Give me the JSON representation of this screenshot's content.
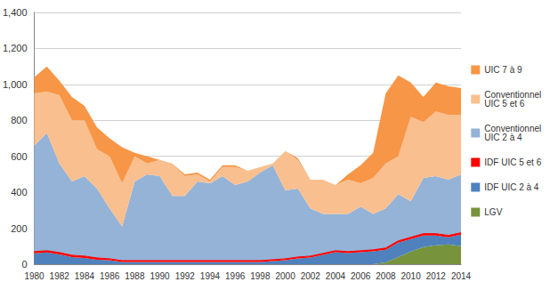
{
  "chart_data": {
    "type": "area",
    "stacked": true,
    "grid": true,
    "legend": "right",
    "categories": [
      "1980",
      null,
      "1982",
      null,
      "1984",
      null,
      "1986",
      null,
      "1988",
      null,
      "1990",
      null,
      "1992",
      null,
      "1994",
      null,
      "1996",
      null,
      "1998",
      null,
      "2000",
      null,
      "2002",
      null,
      "2004",
      null,
      "2006",
      null,
      "2008",
      null,
      "2010",
      null,
      "2012",
      null,
      "2014"
    ],
    "ylim": [
      0,
      1400
    ],
    "yticks": [
      0,
      200,
      400,
      600,
      800,
      1000,
      1200,
      1400
    ],
    "series": [
      {
        "name": "LGV",
        "color": "#77933c",
        "values": [
          0,
          0,
          0,
          0,
          0,
          0,
          0,
          0,
          0,
          0,
          0,
          0,
          0,
          0,
          0,
          0,
          0,
          0,
          0,
          0,
          0,
          0,
          0,
          0,
          0,
          0,
          0,
          0,
          10,
          40,
          70,
          95,
          105,
          110,
          100
        ]
      },
      {
        "name": "IDF UIC 2 à 4",
        "color": "#4f81bd",
        "values": [
          60,
          65,
          55,
          40,
          35,
          25,
          22,
          12,
          12,
          12,
          12,
          12,
          12,
          12,
          12,
          12,
          12,
          12,
          12,
          17,
          22,
          32,
          37,
          52,
          67,
          62,
          67,
          72,
          70,
          80,
          70,
          65,
          55,
          40,
          65
        ]
      },
      {
        "name": "IDF UIC 5 et 6",
        "color": "#ff0000",
        "values": [
          10,
          10,
          10,
          10,
          10,
          10,
          8,
          8,
          8,
          8,
          8,
          8,
          8,
          8,
          8,
          8,
          8,
          8,
          8,
          8,
          8,
          8,
          8,
          8,
          8,
          8,
          8,
          8,
          10,
          10,
          10,
          10,
          10,
          10,
          10
        ]
      },
      {
        "name": "Conventionnel UIC 2 à 4",
        "color": "#95b3d7",
        "values": [
          590,
          655,
          495,
          410,
          445,
          385,
          280,
          190,
          440,
          480,
          470,
          360,
          360,
          440,
          430,
          470,
          420,
          440,
          490,
          525,
          380,
          380,
          265,
          220,
          205,
          210,
          245,
          200,
          220,
          260,
          200,
          310,
          320,
          310,
          325
        ]
      },
      {
        "name": "Conventionnel UIC 5 et 6",
        "color": "#fabf8f",
        "values": [
          290,
          230,
          380,
          340,
          310,
          220,
          290,
          240,
          140,
          60,
          90,
          180,
          110,
          40,
          10,
          50,
          100,
          60,
          30,
          10,
          220,
          160,
          160,
          190,
          160,
          190,
          130,
          200,
          250,
          210,
          470,
          310,
          360,
          360,
          330
        ]
      },
      {
        "name": "UIC 7 à 9",
        "color": "#f79646",
        "values": [
          90,
          140,
          80,
          130,
          80,
          120,
          100,
          200,
          20,
          40,
          0,
          0,
          10,
          10,
          10,
          10,
          10,
          0,
          0,
          0,
          0,
          10,
          0,
          0,
          0,
          30,
          100,
          140,
          390,
          450,
          190,
          140,
          160,
          160,
          150
        ]
      }
    ]
  }
}
